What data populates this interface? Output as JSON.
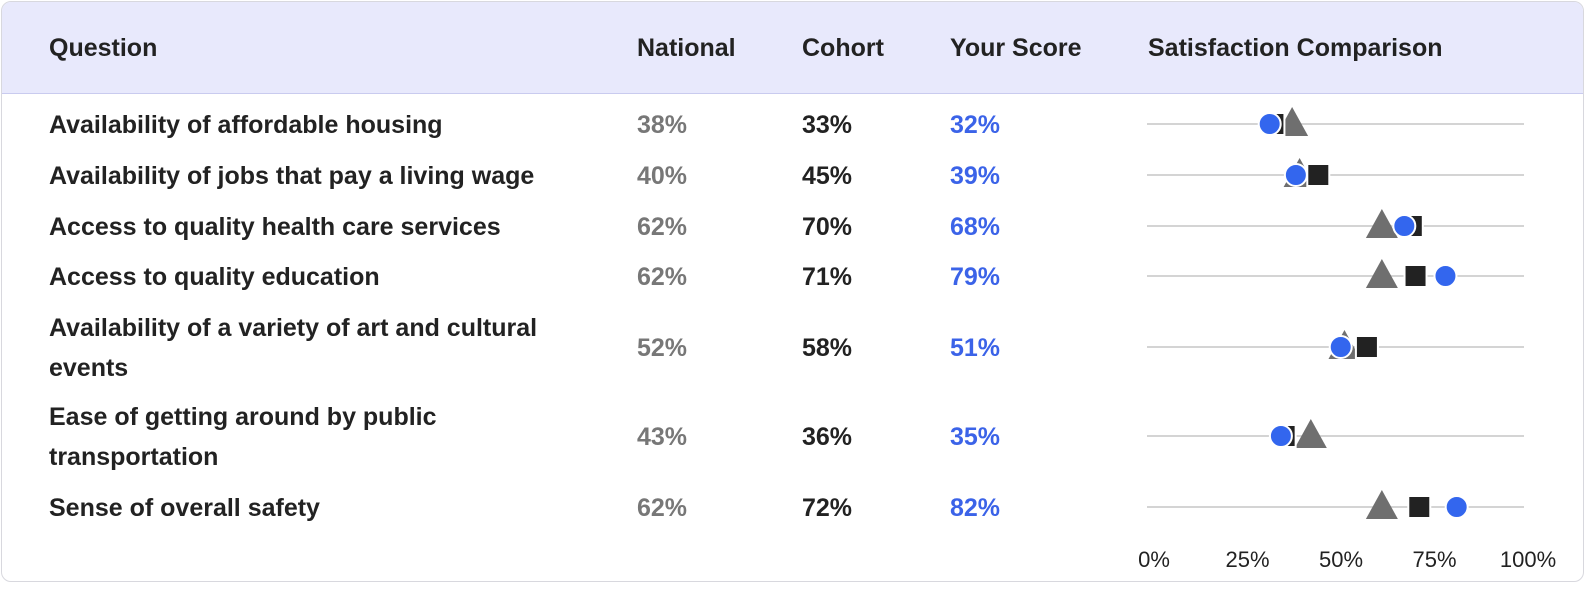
{
  "table": {
    "header": "Question"
  },
  "chart_data": {
    "type": "dot",
    "title": "Satisfaction Comparison",
    "categories": [
      "Availability of affordable housing",
      "Availability of jobs that pay a living wage",
      "Access to quality health care services",
      "Access to quality education",
      "Availability of a variety of art and cultural events",
      "Ease of getting around by public transportation",
      "Sense of overall safety"
    ],
    "series": [
      {
        "name": "National",
        "color": "#6f6f6f",
        "text_color": "#777777",
        "marker": "triangle",
        "values": [
          38,
          40,
          62,
          62,
          52,
          43,
          62
        ],
        "value_labels": [
          "38%",
          "40%",
          "62%",
          "62%",
          "52%",
          "43%",
          "62%"
        ]
      },
      {
        "name": "Cohort",
        "color": "#222222",
        "text_color": "#222222",
        "marker": "square",
        "values": [
          33,
          45,
          70,
          71,
          58,
          36,
          72
        ],
        "value_labels": [
          "33%",
          "45%",
          "70%",
          "71%",
          "58%",
          "36%",
          "72%"
        ]
      },
      {
        "name": "Your Score",
        "color": "#3366ee",
        "text_color": "#3b63e8",
        "marker": "circle",
        "values": [
          32,
          39,
          68,
          79,
          51,
          35,
          82
        ],
        "value_labels": [
          "32%",
          "39%",
          "68%",
          "79%",
          "51%",
          "35%",
          "82%"
        ]
      }
    ],
    "xlim": [
      0,
      100
    ],
    "xticks": [
      {
        "value": 0,
        "label": "0%"
      },
      {
        "value": 25,
        "label": "25%"
      },
      {
        "value": 50,
        "label": "50%"
      },
      {
        "value": 75,
        "label": "75%"
      },
      {
        "value": 100,
        "label": "100%"
      }
    ]
  }
}
